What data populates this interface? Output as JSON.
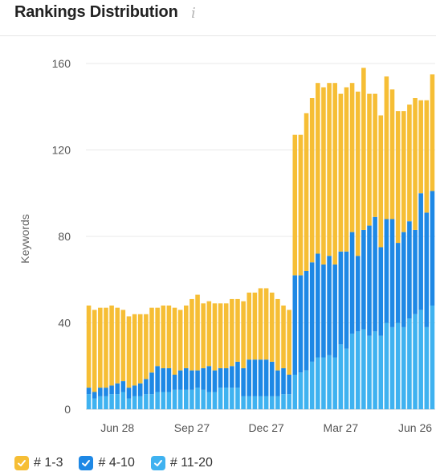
{
  "header": {
    "title": "Rankings Distribution",
    "info_icon": "info-icon"
  },
  "legend": [
    {
      "label": "# 1-3",
      "color": "#f6be35",
      "checked": true
    },
    {
      "label": "# 4-10",
      "color": "#1e88e5",
      "checked": true
    },
    {
      "label": "# 11-20",
      "color": "#3fb2f0",
      "checked": true
    }
  ],
  "chart_data": {
    "type": "bar",
    "stacked": true,
    "ylabel": "Keywords",
    "ylim": [
      0,
      160
    ],
    "yticks": [
      0,
      40,
      80,
      120,
      160
    ],
    "x_ticks": [
      "Jun 28",
      "Sep 27",
      "Dec 27",
      "Mar 27",
      "Jun 26"
    ],
    "x_tick_index": [
      5,
      18,
      31,
      44,
      57
    ],
    "grid": true,
    "legend_position": "bottom",
    "series": [
      {
        "name": "# 11-20",
        "color": "#3fb2f0",
        "values": [
          7,
          5,
          6,
          6,
          7,
          7,
          8,
          5,
          6,
          6,
          7,
          7,
          8,
          8,
          8,
          9,
          9,
          9,
          9,
          10,
          9,
          8,
          8,
          10,
          10,
          10,
          10,
          6,
          6,
          6,
          6,
          6,
          6,
          6,
          7,
          7,
          16,
          17,
          18,
          22,
          24,
          24,
          25,
          24,
          30,
          28,
          35,
          36,
          37,
          34,
          36,
          34,
          40,
          38,
          40,
          38,
          42,
          44,
          46,
          38,
          48
        ]
      },
      {
        "name": "# 4-10",
        "color": "#1e88e5",
        "values": [
          3,
          3,
          4,
          4,
          4,
          5,
          5,
          5,
          5,
          6,
          7,
          10,
          12,
          11,
          11,
          7,
          9,
          10,
          9,
          8,
          10,
          12,
          10,
          9,
          9,
          10,
          12,
          13,
          17,
          17,
          17,
          17,
          16,
          12,
          12,
          9,
          46,
          45,
          46,
          46,
          48,
          43,
          46,
          43,
          43,
          45,
          47,
          35,
          46,
          51,
          53,
          41,
          48,
          50,
          37,
          44,
          45,
          39,
          54,
          53,
          53
        ]
      },
      {
        "name": "# 1-3",
        "color": "#f6be35",
        "values": [
          38,
          38,
          37,
          37,
          37,
          35,
          33,
          33,
          33,
          32,
          30,
          30,
          27,
          29,
          29,
          31,
          28,
          29,
          33,
          35,
          30,
          30,
          31,
          30,
          30,
          31,
          29,
          31,
          31,
          31,
          33,
          33,
          32,
          33,
          29,
          30,
          65,
          65,
          73,
          76,
          79,
          82,
          80,
          84,
          73,
          76,
          69,
          76,
          75,
          61,
          57,
          61,
          66,
          60,
          61,
          56,
          54,
          61,
          43,
          52,
          54
        ]
      }
    ]
  }
}
